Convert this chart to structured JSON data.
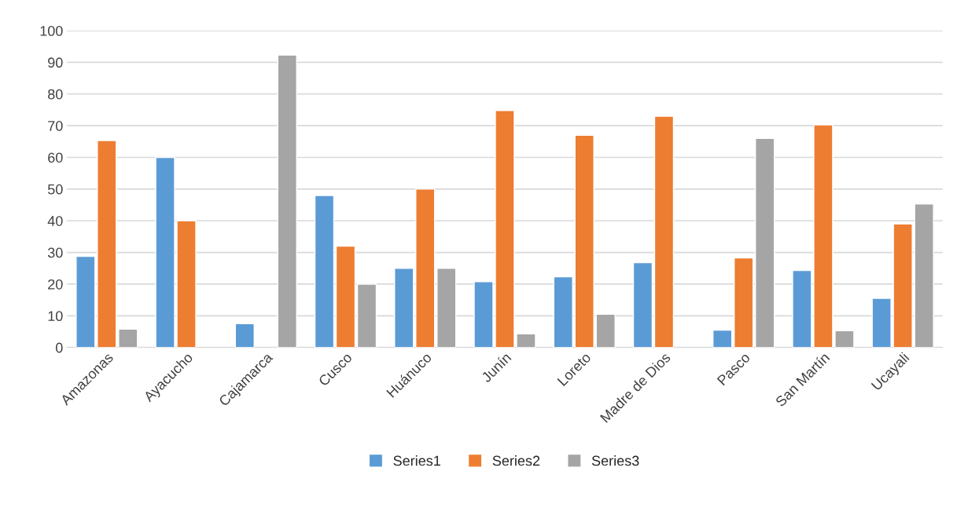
{
  "chart_data": {
    "type": "bar",
    "categories": [
      "Amazonas",
      "Ayacucho",
      "Cajamarca",
      "Cusco",
      "Huánuco",
      "Junín",
      "Loreto",
      "Madre de Dios",
      "Pasco",
      "San Martín",
      "Ucayali"
    ],
    "series": [
      {
        "name": "Series1",
        "color": "#5b9bd5",
        "values": [
          28.8,
          60,
          7.5,
          48,
          25,
          20.8,
          22.3,
          26.8,
          5.5,
          24.3,
          15.5
        ]
      },
      {
        "name": "Series2",
        "color": "#ed7d31",
        "values": [
          65.3,
          40,
          null,
          32,
          50,
          74.8,
          67,
          73,
          28.3,
          70.3,
          39
        ]
      },
      {
        "name": "Series3",
        "color": "#a5a5a5",
        "values": [
          5.8,
          null,
          92.3,
          20,
          25,
          4.3,
          10.5,
          null,
          66,
          5.3,
          45.3
        ]
      }
    ],
    "ylim": [
      0,
      100
    ],
    "yticks": [
      0,
      10,
      20,
      30,
      40,
      50,
      60,
      70,
      80,
      90,
      100
    ],
    "grid": "y",
    "legend": "bottom"
  }
}
